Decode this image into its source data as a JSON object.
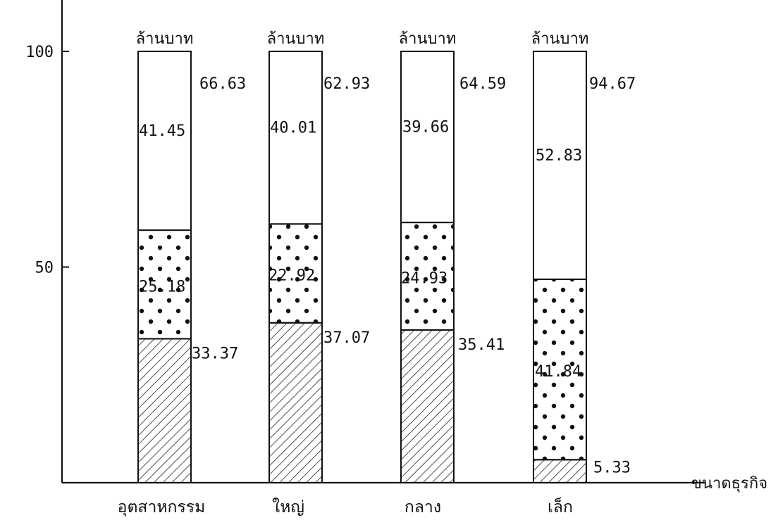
{
  "chart_data": {
    "type": "bar",
    "stacked": true,
    "categories": [
      "อุตสาหกรรม",
      "ใหญ่",
      "กลาง",
      "เล็ก"
    ],
    "unit_label": "ล้านบาท",
    "xlabel": "ขนาดธุรกิจ",
    "ylim": [
      0,
      100
    ],
    "yticks": [
      50,
      100
    ],
    "totals": [
      100,
      100,
      100,
      100
    ],
    "series": [
      {
        "pattern": "hatch",
        "values": [
          33.37,
          37.07,
          35.41,
          5.33
        ]
      },
      {
        "pattern": "dots",
        "values": [
          25.18,
          22.92,
          24.93,
          41.84
        ]
      },
      {
        "pattern": "blank",
        "values": [
          41.45,
          40.01,
          39.66,
          52.83
        ]
      }
    ],
    "upper_labels": [
      66.63,
      62.93,
      64.59,
      94.67
    ],
    "value_labels": {
      "hatch": [
        "33.37",
        "37.07",
        "35.41",
        "5.33"
      ],
      "dots": [
        "25.18",
        "22.92",
        "24.93",
        "41.84"
      ],
      "blank": [
        "41.45",
        "40.01",
        "39.66",
        "52.83"
      ],
      "upper": [
        "66.63",
        "62.93",
        "64.59",
        "94.67"
      ]
    },
    "grid": false,
    "legend": "none"
  }
}
